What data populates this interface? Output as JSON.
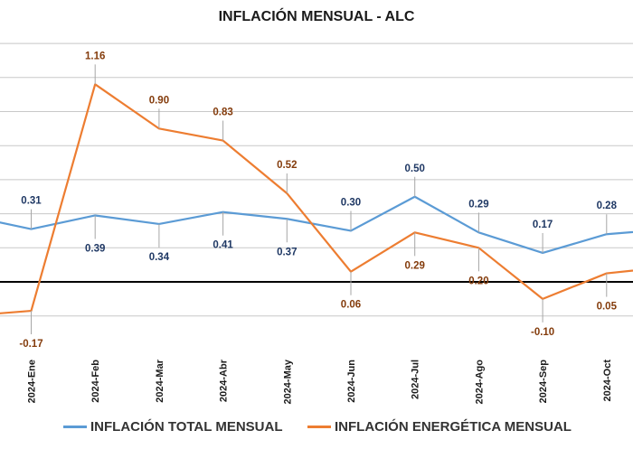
{
  "chart_data": {
    "type": "line",
    "title": "INFLACIÓN MENSUAL - ALC",
    "categories": [
      "2024-Ene",
      "2024-Feb",
      "2024-Mar",
      "2024-Abr",
      "2024-May",
      "2024-Jun",
      "2024-Jul",
      "2024-Ago",
      "2024-Sep",
      "2024-Oct"
    ],
    "series": [
      {
        "name": "INFLACIÓN TOTAL MENSUAL",
        "color": "#5b9bd5",
        "label_color": "#1f3864",
        "values": [
          0.31,
          0.39,
          0.34,
          0.41,
          0.37,
          0.3,
          0.5,
          0.29,
          0.17,
          0.28
        ],
        "edge_values": {
          "before": 0.39,
          "after": 0.31
        }
      },
      {
        "name": "INFLACIÓN ENERGÉTICA MENSUAL",
        "color": "#ed7d31",
        "label_color": "#843c0c",
        "values": [
          -0.17,
          1.16,
          0.9,
          0.83,
          0.52,
          0.06,
          0.29,
          0.2,
          -0.1,
          0.05
        ],
        "edge_values": {
          "before": -0.2,
          "after": 0.09
        }
      }
    ],
    "ylim": [
      -0.4,
      1.3
    ],
    "grid": true,
    "zero_line": true,
    "legend": "bottom"
  }
}
